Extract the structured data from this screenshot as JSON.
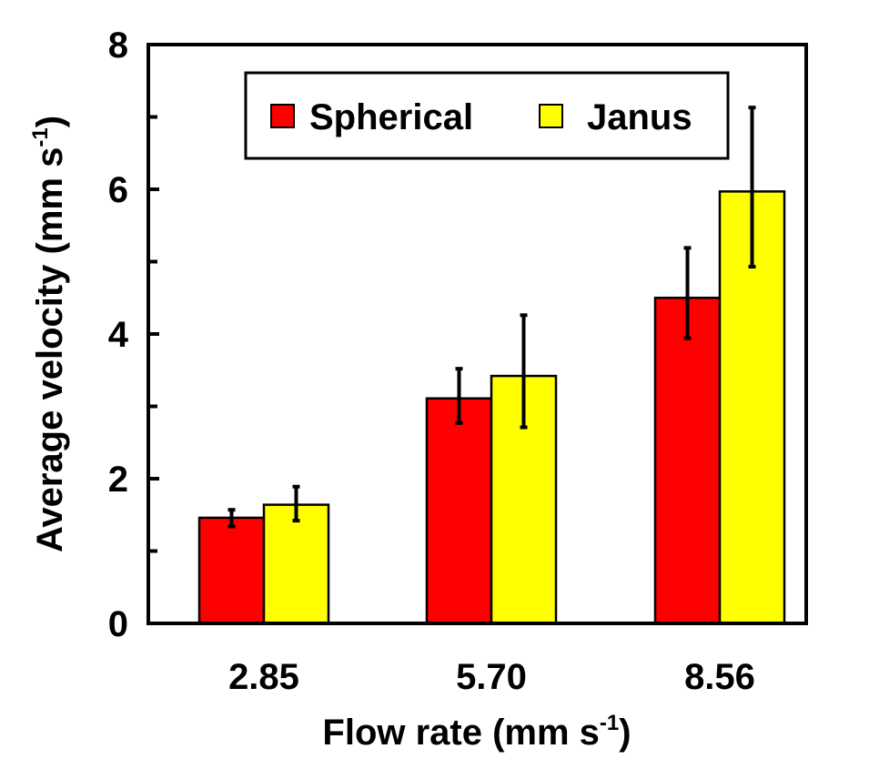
{
  "chart_data": {
    "type": "bar",
    "title": "",
    "xlabel": "Flow rate (mm s",
    "xlabel_sup": "-1",
    "xlabel_end": ")",
    "ylabel": "Average velocity (mm s",
    "ylabel_sup": "-1",
    "ylabel_end": ")",
    "ylim": [
      0,
      8
    ],
    "yticks": [
      0,
      2,
      4,
      6,
      8
    ],
    "yminor": [
      1,
      3,
      5,
      7
    ],
    "categories": [
      "2.85",
      "5.70",
      "8.56"
    ],
    "legend_position": "top-center",
    "series": [
      {
        "name": "Spherical",
        "color": "#ff0000",
        "values": [
          1.46,
          3.11,
          4.5
        ],
        "err_low": [
          1.34,
          2.77,
          3.94
        ],
        "err_high": [
          1.57,
          3.52,
          5.19
        ]
      },
      {
        "name": "Janus",
        "color": "#ffff00",
        "values": [
          1.64,
          3.42,
          5.97
        ],
        "err_low": [
          1.42,
          2.71,
          4.93
        ],
        "err_high": [
          1.89,
          4.26,
          7.13
        ]
      }
    ]
  }
}
